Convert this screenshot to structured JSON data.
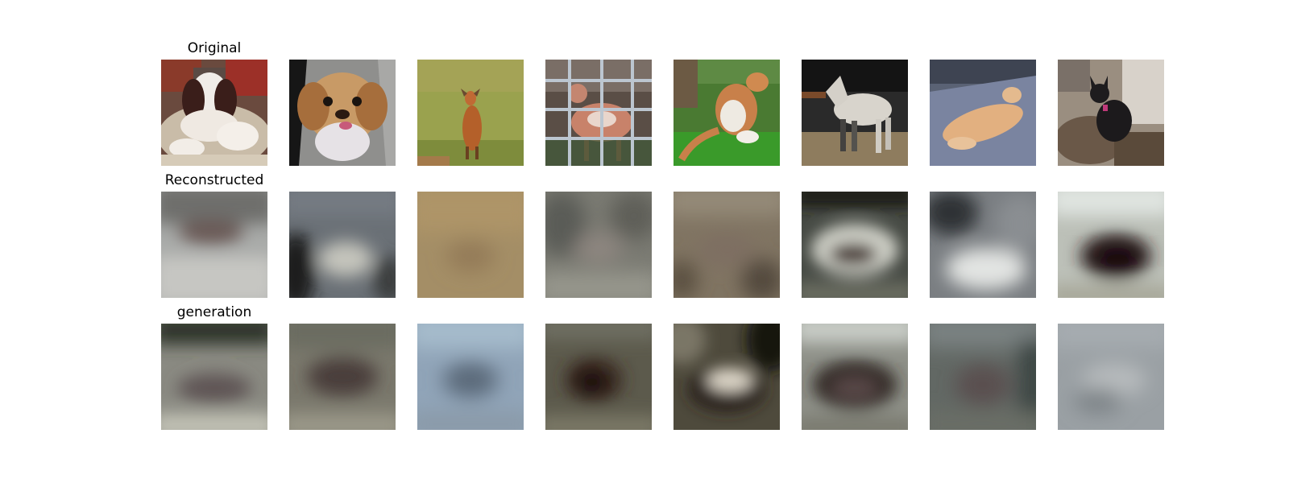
{
  "figure": {
    "rows": [
      {
        "title": "Original",
        "tiles": [
          {
            "subject": "dog"
          },
          {
            "subject": "dog"
          },
          {
            "subject": "deer"
          },
          {
            "subject": "deer"
          },
          {
            "subject": "cat"
          },
          {
            "subject": "horse"
          },
          {
            "subject": "dog"
          },
          {
            "subject": "dog"
          }
        ]
      },
      {
        "title": "Reconstructed",
        "tiles": [
          {
            "subject": "blurred-reconstruction"
          },
          {
            "subject": "blurred-reconstruction"
          },
          {
            "subject": "blurred-reconstruction"
          },
          {
            "subject": "blurred-reconstruction"
          },
          {
            "subject": "blurred-reconstruction"
          },
          {
            "subject": "blurred-reconstruction"
          },
          {
            "subject": "blurred-reconstruction"
          },
          {
            "subject": "blurred-reconstruction"
          }
        ]
      },
      {
        "title": "generation",
        "tiles": [
          {
            "subject": "blurred-generation"
          },
          {
            "subject": "blurred-generation"
          },
          {
            "subject": "blurred-generation"
          },
          {
            "subject": "blurred-generation"
          },
          {
            "subject": "blurred-generation"
          },
          {
            "subject": "blurred-generation"
          },
          {
            "subject": "blurred-generation"
          },
          {
            "subject": "blurred-generation"
          }
        ]
      }
    ]
  }
}
